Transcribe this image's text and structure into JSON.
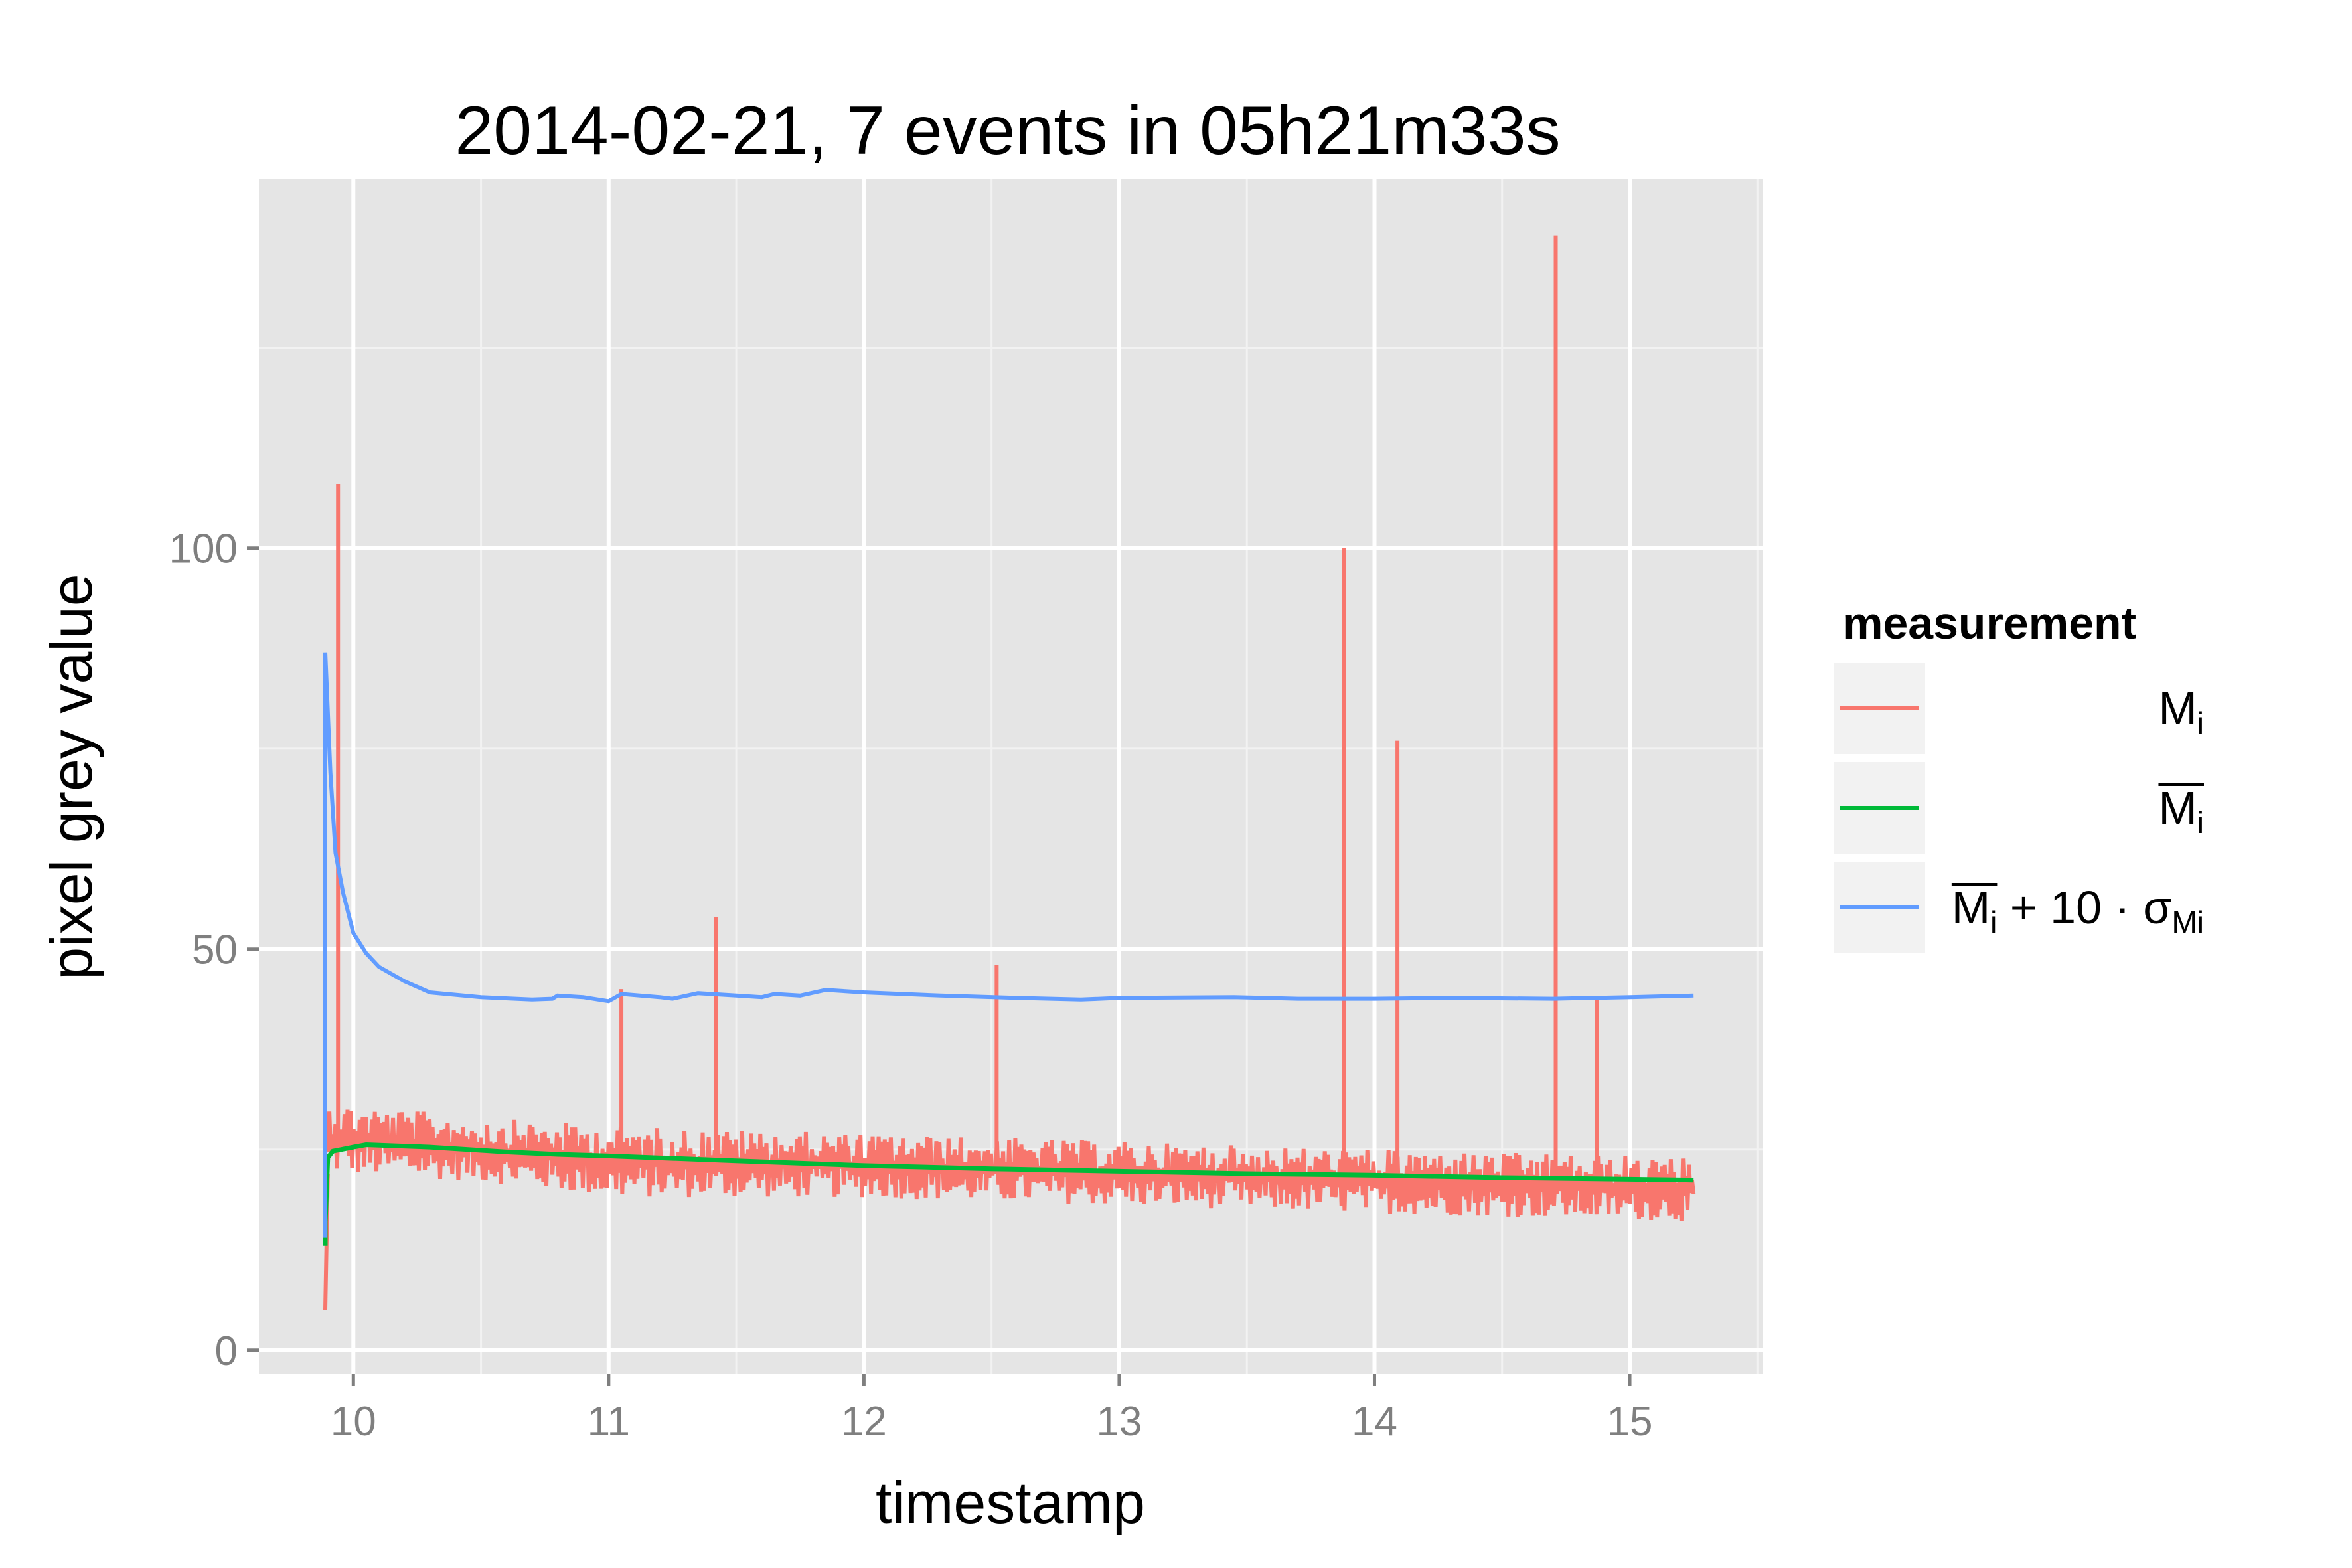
{
  "chart_data": {
    "type": "line",
    "title": "2014-02-21, 7 events in 05h21m33s",
    "xlabel": "timestamp",
    "ylabel": "pixel grey value",
    "xlim": [
      9.63,
      15.52
    ],
    "ylim": [
      -3,
      146
    ],
    "x_ticks": [
      10,
      11,
      12,
      13,
      14,
      15
    ],
    "x_tick_labels": [
      "10",
      "11",
      "12",
      "13",
      "14",
      "15"
    ],
    "y_ticks": [
      0,
      50,
      100
    ],
    "y_tick_labels": [
      "0",
      "50",
      "100"
    ],
    "grid": true,
    "legend": {
      "title": "measurement",
      "position": "right",
      "entries": [
        {
          "base": "M",
          "sub": "i",
          "overline": false,
          "color": "#F8766D"
        },
        {
          "base": "M",
          "sub": "i",
          "overline": true,
          "color": "#00BA38"
        },
        {
          "base": "M",
          "sub": "i",
          "overline": true,
          "suffix": " + 10 · σ",
          "suffix_sub": "Mi",
          "color": "#619CFF"
        }
      ]
    },
    "series": [
      {
        "name": "M_i",
        "color": "#F8766D",
        "noise_band": [
          {
            "x": 9.9,
            "low": 22,
            "high": 31
          },
          {
            "x": 10.5,
            "low": 21,
            "high": 29
          },
          {
            "x": 11.0,
            "low": 19,
            "high": 28
          },
          {
            "x": 12.0,
            "low": 19,
            "high": 27
          },
          {
            "x": 13.0,
            "low": 18,
            "high": 26
          },
          {
            "x": 14.0,
            "low": 17,
            "high": 25
          },
          {
            "x": 15.25,
            "low": 16,
            "high": 24
          }
        ],
        "start": [
          {
            "x": 9.89,
            "y": 5
          },
          {
            "x": 9.9,
            "y": 22
          }
        ],
        "spikes": [
          {
            "x": 9.94,
            "y": 108
          },
          {
            "x": 11.05,
            "y": 45
          },
          {
            "x": 11.42,
            "y": 54
          },
          {
            "x": 12.52,
            "y": 48
          },
          {
            "x": 13.88,
            "y": 100
          },
          {
            "x": 14.09,
            "y": 76
          },
          {
            "x": 14.71,
            "y": 139
          },
          {
            "x": 14.87,
            "y": 44
          }
        ]
      },
      {
        "name": "M̄_i",
        "color": "#00BA38",
        "points": [
          [
            9.89,
            13
          ],
          [
            9.89,
            16
          ],
          [
            9.9,
            24
          ],
          [
            9.92,
            24.8
          ],
          [
            10.0,
            25.3
          ],
          [
            10.05,
            25.6
          ],
          [
            10.3,
            25.3
          ],
          [
            10.6,
            24.7
          ],
          [
            10.8,
            24.4
          ],
          [
            11.0,
            24.2
          ],
          [
            11.5,
            23.6
          ],
          [
            12.0,
            23.0
          ],
          [
            12.5,
            22.6
          ],
          [
            13.0,
            22.3
          ],
          [
            13.5,
            22.0
          ],
          [
            14.0,
            21.8
          ],
          [
            14.5,
            21.5
          ],
          [
            15.0,
            21.3
          ],
          [
            15.25,
            21.2
          ]
        ]
      },
      {
        "name": "M̄_i + 10·σ_Mi",
        "color": "#619CFF",
        "points": [
          [
            9.89,
            14
          ],
          [
            9.89,
            87
          ],
          [
            9.91,
            72
          ],
          [
            9.93,
            62
          ],
          [
            9.96,
            57
          ],
          [
            10.0,
            52
          ],
          [
            10.05,
            49.5
          ],
          [
            10.1,
            47.8
          ],
          [
            10.2,
            46
          ],
          [
            10.3,
            44.6
          ],
          [
            10.5,
            44.0
          ],
          [
            10.7,
            43.7
          ],
          [
            10.78,
            43.8
          ],
          [
            10.8,
            44.2
          ],
          [
            10.9,
            44.0
          ],
          [
            11.0,
            43.5
          ],
          [
            11.05,
            44.4
          ],
          [
            11.2,
            44.0
          ],
          [
            11.25,
            43.8
          ],
          [
            11.35,
            44.5
          ],
          [
            11.5,
            44.2
          ],
          [
            11.6,
            44.0
          ],
          [
            11.65,
            44.4
          ],
          [
            11.75,
            44.2
          ],
          [
            11.85,
            44.9
          ],
          [
            12.0,
            44.6
          ],
          [
            12.3,
            44.2
          ],
          [
            12.6,
            43.9
          ],
          [
            12.85,
            43.7
          ],
          [
            13.0,
            43.9
          ],
          [
            13.45,
            44.0
          ],
          [
            13.7,
            43.8
          ],
          [
            14.0,
            43.8
          ],
          [
            14.3,
            43.9
          ],
          [
            14.7,
            43.8
          ],
          [
            15.0,
            44.0
          ],
          [
            15.25,
            44.2
          ]
        ]
      }
    ]
  }
}
